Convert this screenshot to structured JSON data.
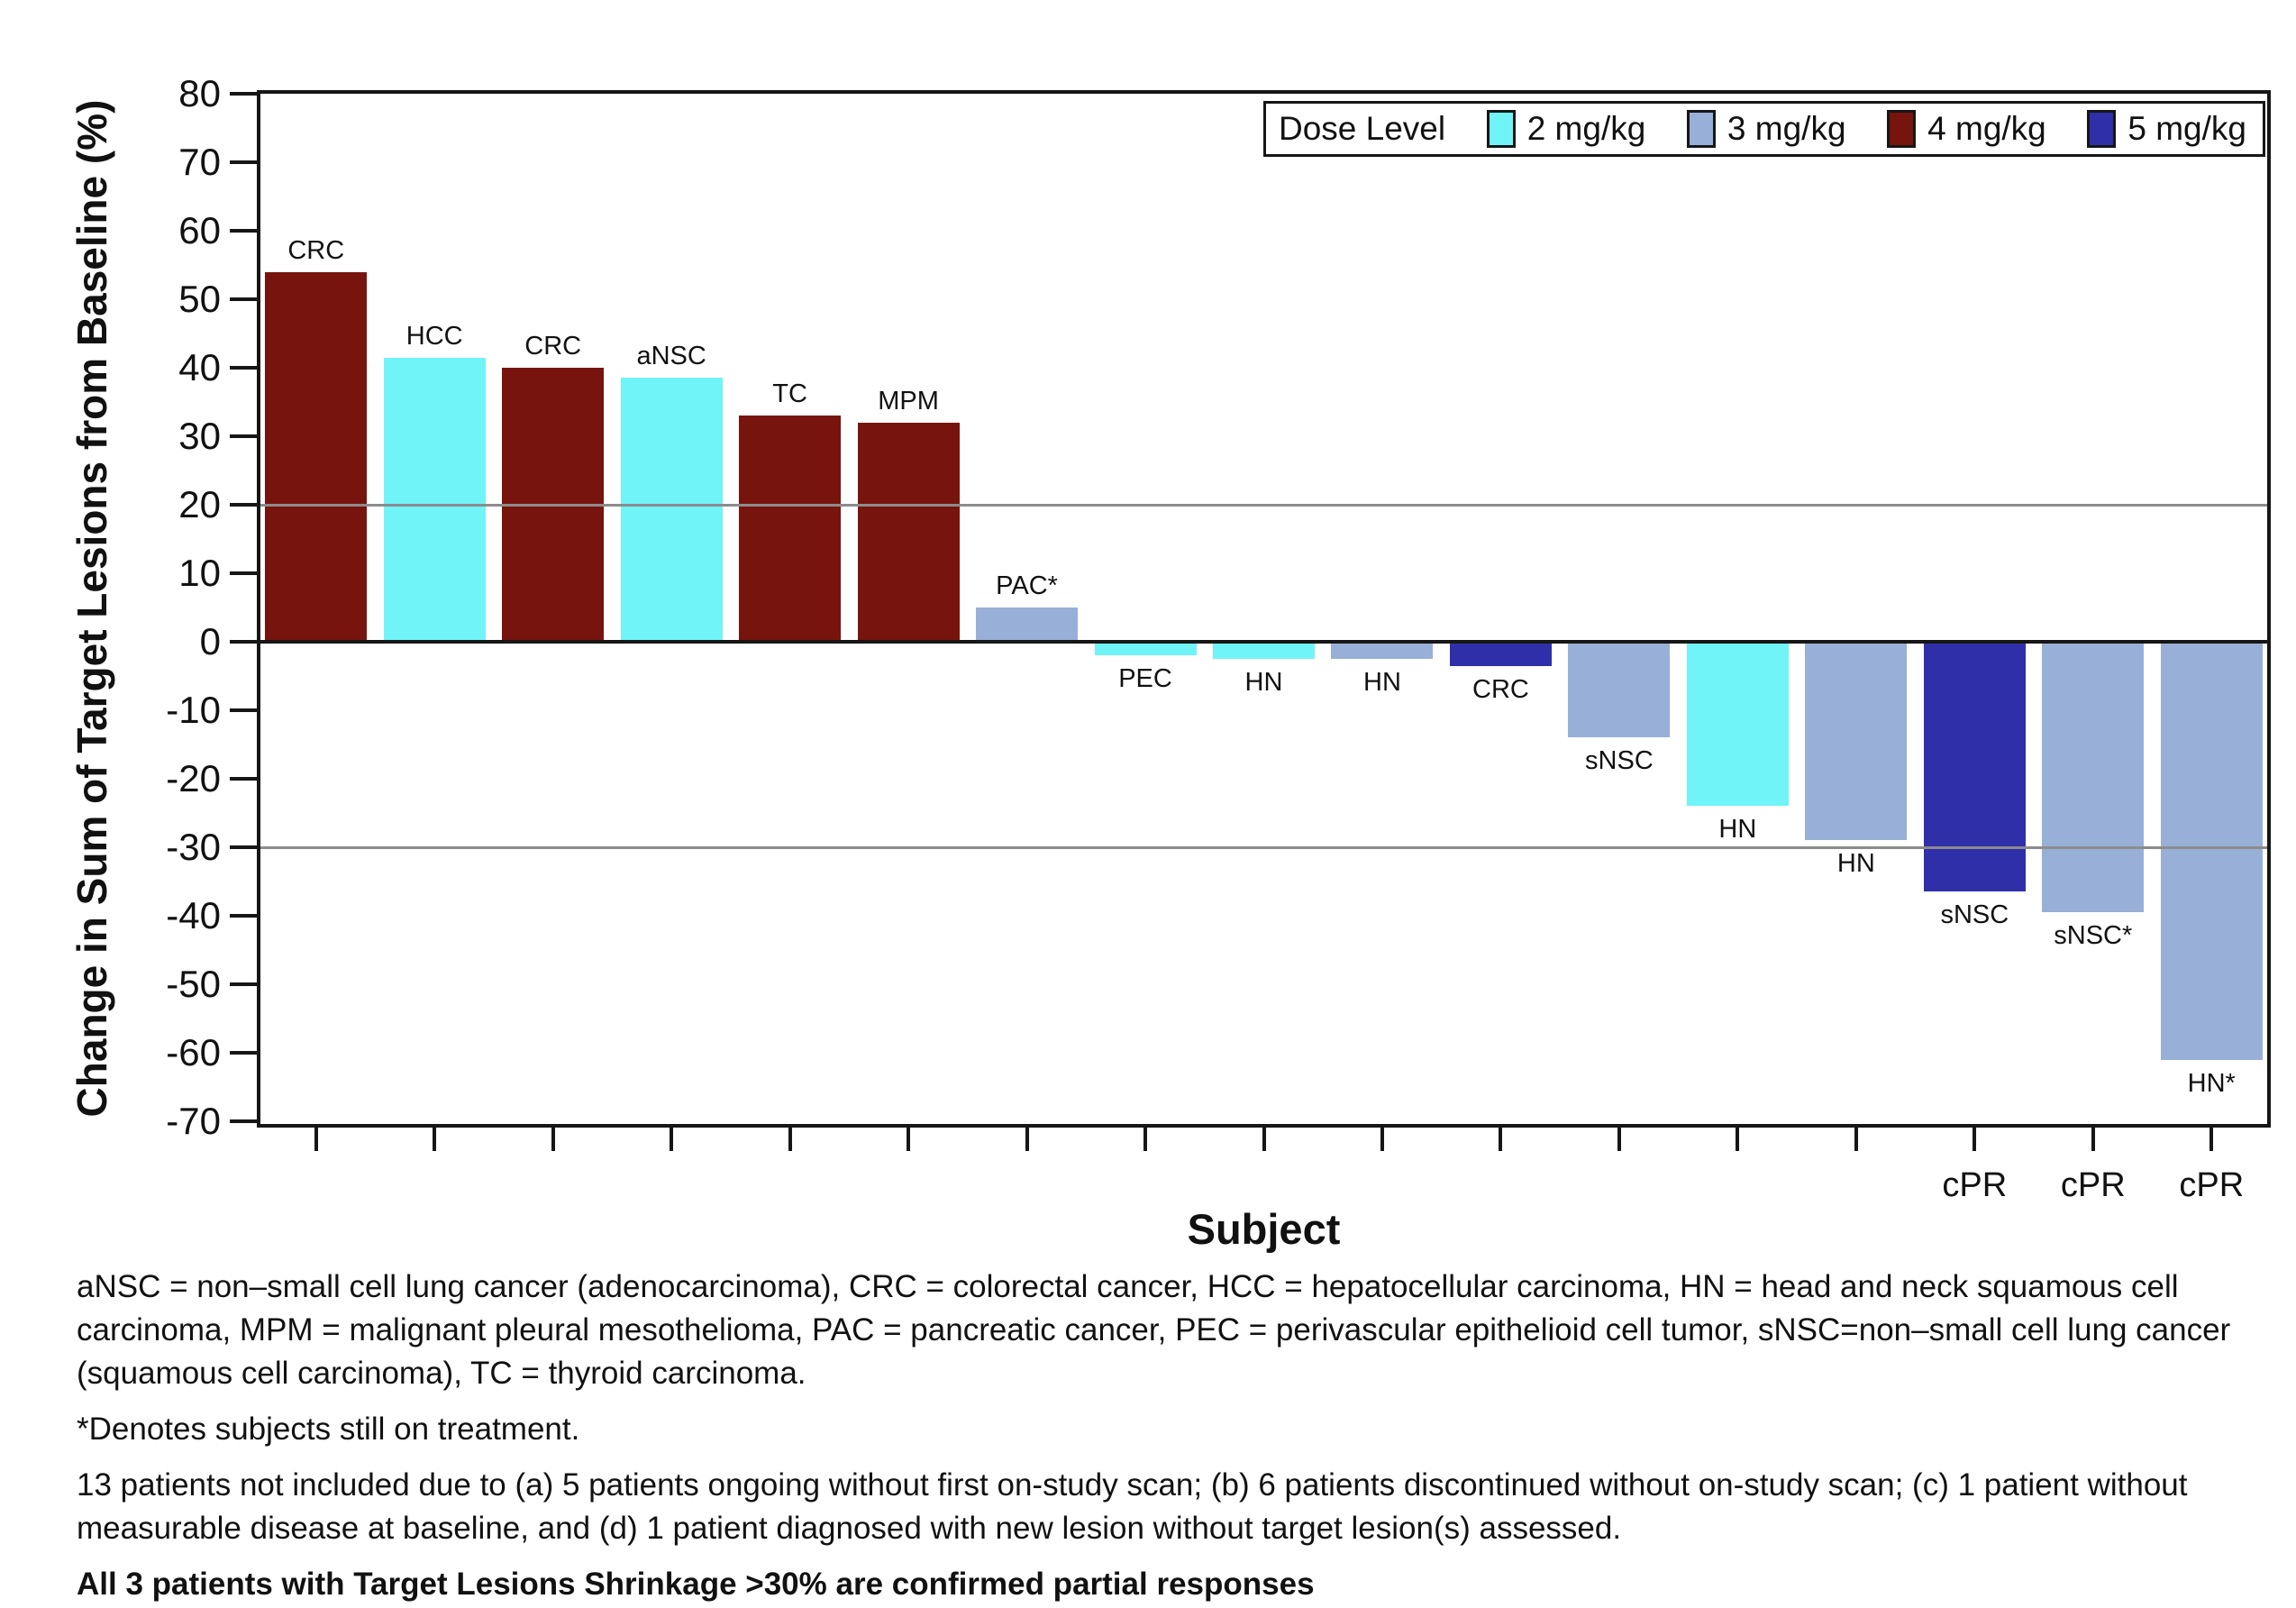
{
  "chart_data": {
    "type": "bar",
    "variant": "waterfall",
    "xlabel": "Subject",
    "ylabel": "Change in Sum of Target Lesions from Baseline (%)",
    "ylim": [
      -70,
      80
    ],
    "yticks": [
      80,
      70,
      60,
      50,
      40,
      30,
      20,
      10,
      0,
      -10,
      -20,
      -30,
      -40,
      -50,
      -60,
      -70
    ],
    "reference_lines": [
      20,
      -30
    ],
    "baseline": 0,
    "grid": "off",
    "legend": {
      "title": "Dose Level",
      "position": "top-right",
      "entries": [
        {
          "dose": "2",
          "label": "2 mg/kg",
          "color": "#70F4F8"
        },
        {
          "dose": "3",
          "label": "3 mg/kg",
          "color": "#98B0D7"
        },
        {
          "dose": "4",
          "label": "4 mg/kg",
          "color": "#77140D"
        },
        {
          "dose": "5",
          "label": "5 mg/kg",
          "color": "#2E2FA9"
        }
      ]
    },
    "bars": [
      {
        "tumor": "CRC",
        "dose": "4",
        "value": 54
      },
      {
        "tumor": "HCC",
        "dose": "2",
        "value": 41.5
      },
      {
        "tumor": "CRC",
        "dose": "4",
        "value": 40
      },
      {
        "tumor": "aNSC",
        "dose": "2",
        "value": 38.5
      },
      {
        "tumor": "TC",
        "dose": "4",
        "value": 33
      },
      {
        "tumor": "MPM",
        "dose": "4",
        "value": 32
      },
      {
        "tumor": "PAC*",
        "dose": "3",
        "value": 5
      },
      {
        "tumor": "PEC",
        "dose": "2",
        "value": -2
      },
      {
        "tumor": "HN",
        "dose": "2",
        "value": -2.5
      },
      {
        "tumor": "HN",
        "dose": "3",
        "value": -2.5
      },
      {
        "tumor": "CRC",
        "dose": "5",
        "value": -3.5
      },
      {
        "tumor": "sNSC",
        "dose": "3",
        "value": -14
      },
      {
        "tumor": "HN",
        "dose": "2",
        "value": -24
      },
      {
        "tumor": "HN",
        "dose": "3",
        "value": -29
      },
      {
        "tumor": "sNSC",
        "dose": "5",
        "value": -36.5,
        "annotation": "cPR"
      },
      {
        "tumor": "sNSC*",
        "dose": "3",
        "value": -39.5,
        "annotation": "cPR"
      },
      {
        "tumor": "HN*",
        "dose": "3",
        "value": -61,
        "annotation": "cPR"
      }
    ]
  },
  "footnotes": {
    "abbreviations": "aNSC = non–small cell lung cancer (adenocarcinoma), CRC = colorectal cancer, HCC = hepatocellular carcinoma, HN = head and neck squamous cell carcinoma, MPM = malignant pleural mesothelioma, PAC = pancreatic cancer, PEC = perivascular epithelioid cell tumor, sNSC=non–small cell lung cancer (squamous cell carcinoma), TC = thyroid carcinoma.",
    "asterisk": "*Denotes subjects still on treatment.",
    "exclusions": "13 patients not included due to (a) 5 patients ongoing without first on-study scan;  (b) 6 patients discontinued without on-study scan; (c) 1 patient without measurable disease at baseline, and (d) 1 patient diagnosed with new lesion without target lesion(s) assessed.",
    "confirmed": "All 3 patients with Target Lesions Shrinkage >30% are confirmed partial responses"
  }
}
